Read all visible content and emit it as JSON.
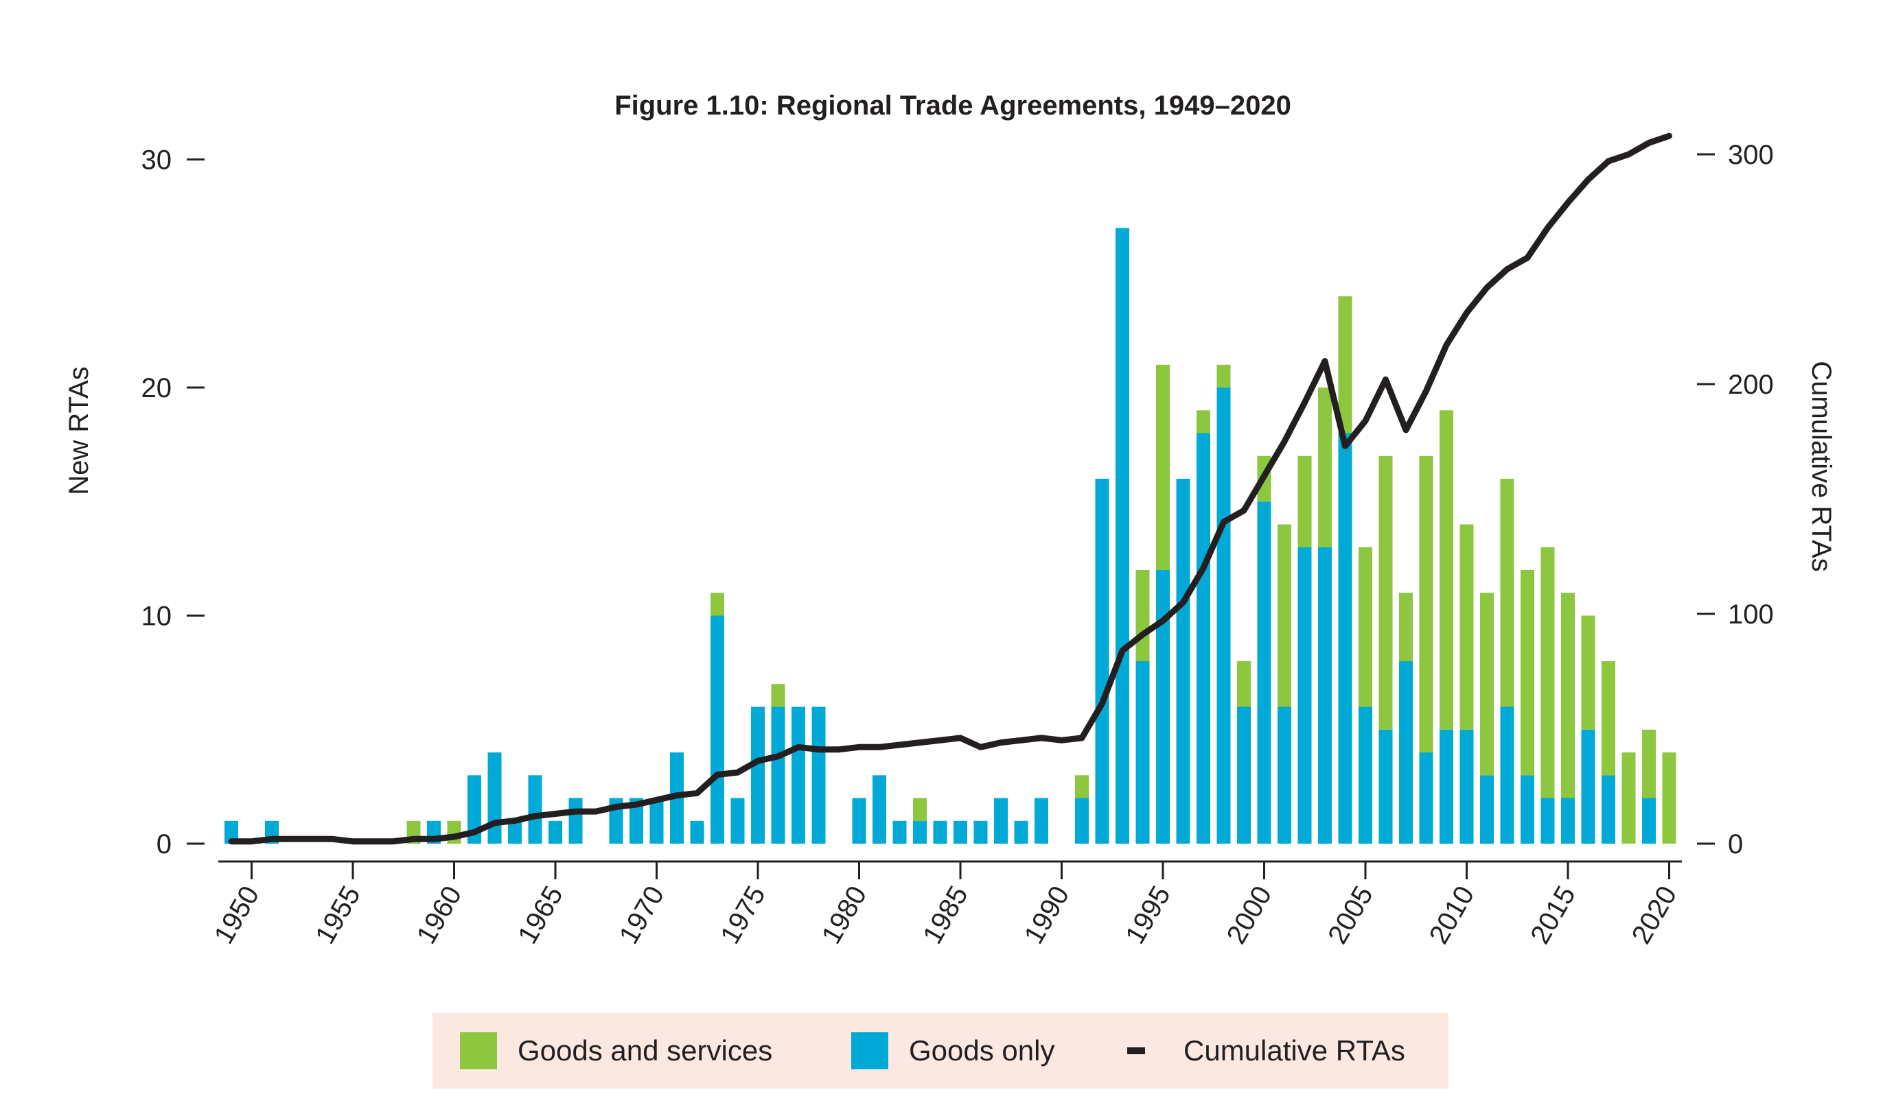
{
  "colors": {
    "goods_and_services": "#8dc63f",
    "goods_only": "#00a9d6",
    "cumulative": "#231f20",
    "legend_bg": "#fbe9e1"
  },
  "chart_data": {
    "type": "bar",
    "title": "Figure 1.10: Regional Trade Agreements, 1949–2020",
    "ylabel": "New RTAs",
    "y2label": "Cumulative RTAs",
    "ylim": [
      0,
      30
    ],
    "y2lim": [
      0,
      300
    ],
    "yticks": [
      0,
      10,
      20,
      30
    ],
    "y2ticks": [
      0,
      100,
      200,
      300
    ],
    "xticks": [
      1950,
      1955,
      1960,
      1965,
      1970,
      1975,
      1980,
      1985,
      1990,
      1995,
      2000,
      2005,
      2010,
      2015,
      2020
    ],
    "stacked": true,
    "legend_position": "bottom",
    "grid": false,
    "categories": [
      1949,
      1950,
      1951,
      1952,
      1953,
      1954,
      1955,
      1956,
      1957,
      1958,
      1959,
      1960,
      1961,
      1962,
      1963,
      1964,
      1965,
      1966,
      1967,
      1968,
      1969,
      1970,
      1971,
      1972,
      1973,
      1974,
      1975,
      1976,
      1977,
      1978,
      1979,
      1980,
      1981,
      1982,
      1983,
      1984,
      1985,
      1986,
      1987,
      1988,
      1989,
      1990,
      1991,
      1992,
      1993,
      1994,
      1995,
      1996,
      1997,
      1998,
      1999,
      2000,
      2001,
      2002,
      2003,
      2004,
      2005,
      2006,
      2007,
      2008,
      2009,
      2010,
      2011,
      2012,
      2013,
      2014,
      2015,
      2016,
      2017,
      2018,
      2019,
      2020
    ],
    "series": [
      {
        "name": "Goods only",
        "values": [
          1,
          0,
          1,
          0,
          0,
          0,
          0,
          0,
          0,
          0,
          1,
          0,
          3,
          4,
          1,
          3,
          1,
          2,
          0,
          2,
          2,
          2,
          4,
          1,
          10,
          2,
          6,
          6,
          6,
          6,
          0,
          2,
          3,
          1,
          1,
          1,
          1,
          1,
          2,
          1,
          2,
          0,
          2,
          16,
          27,
          8,
          12,
          16,
          18,
          20,
          6,
          15,
          6,
          13,
          13,
          18,
          6,
          5,
          8,
          4,
          5,
          5,
          3,
          6,
          3,
          2,
          2,
          5,
          3,
          0,
          2,
          0
        ]
      },
      {
        "name": "Goods and services",
        "values": [
          0,
          0,
          0,
          0,
          0,
          0,
          0,
          0,
          0,
          1,
          0,
          1,
          0,
          0,
          0,
          0,
          0,
          0,
          0,
          0,
          0,
          0,
          0,
          0,
          1,
          0,
          0,
          1,
          0,
          0,
          0,
          0,
          0,
          0,
          1,
          0,
          0,
          0,
          0,
          0,
          0,
          0,
          1,
          0,
          0,
          4,
          9,
          0,
          1,
          1,
          2,
          2,
          8,
          4,
          7,
          6,
          7,
          12,
          3,
          13,
          14,
          9,
          8,
          10,
          9,
          11,
          9,
          5,
          5,
          4,
          3,
          4
        ]
      },
      {
        "name": "Cumulative RTAs",
        "type": "line",
        "axis": "right",
        "values": [
          1,
          1,
          2,
          2,
          2,
          2,
          1,
          1,
          1,
          2,
          2,
          3,
          5,
          9,
          10,
          12,
          13,
          14,
          14,
          16,
          17,
          19,
          21,
          22,
          30,
          31,
          36,
          38,
          42,
          41,
          41,
          42,
          42,
          43,
          44,
          45,
          46,
          42,
          44,
          45,
          46,
          45,
          46,
          61,
          84,
          91,
          97,
          105,
          120,
          140,
          145,
          160,
          175,
          192,
          210,
          173,
          184,
          202,
          180,
          197,
          217,
          231,
          242,
          250,
          255,
          268,
          279,
          289,
          297,
          300,
          305,
          308
        ]
      }
    ]
  },
  "legend": {
    "items": [
      {
        "label": "Goods and services",
        "kind": "swatch",
        "color": "#8dc63f"
      },
      {
        "label": "Goods only",
        "kind": "swatch",
        "color": "#00a9d6"
      },
      {
        "label": "Cumulative RTAs",
        "kind": "line",
        "color": "#231f20"
      }
    ]
  }
}
